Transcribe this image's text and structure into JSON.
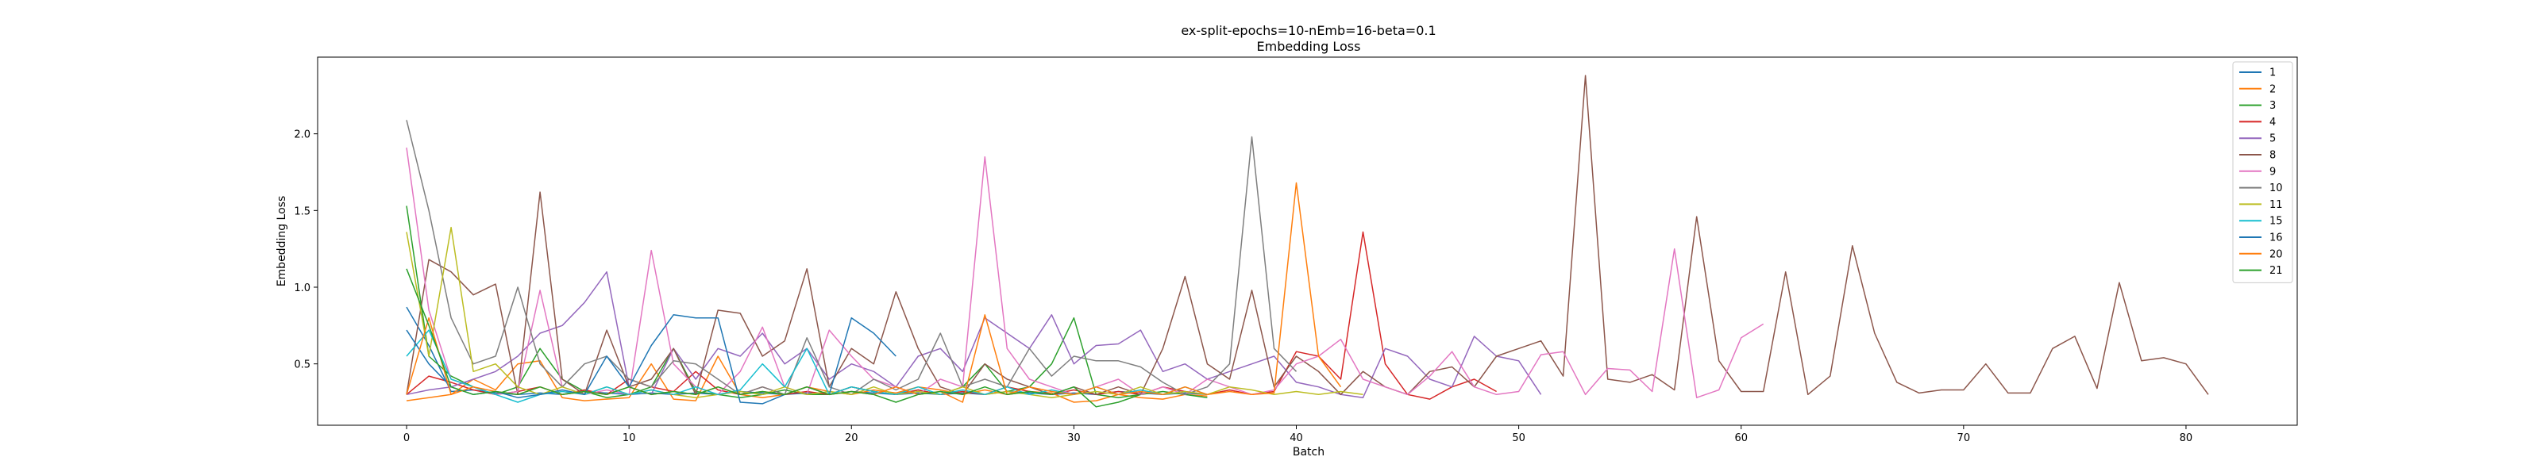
{
  "chart_data": {
    "type": "line",
    "title": "ex-split-epochs=10-nEmb=16-beta=0.1",
    "subtitle": "Embedding Loss",
    "xlabel": "Batch",
    "ylabel": "Embedding Loss",
    "xlim": [
      -4,
      85
    ],
    "ylim": [
      0.1,
      2.5
    ],
    "xticks": [
      0,
      10,
      20,
      30,
      40,
      50,
      60,
      70,
      80
    ],
    "yticks": [
      0.5,
      1.0,
      1.5,
      2.0
    ],
    "ytick_labels": [
      "0.5",
      "1.0",
      "1.5",
      "2.0"
    ],
    "grid": false,
    "legend_position": "top-right",
    "series": [
      {
        "name": "1",
        "color": "#1f77b4",
        "values": [
          0.87,
          0.62,
          0.32,
          0.33,
          0.31,
          0.3,
          0.31,
          0.3,
          0.32,
          0.31,
          0.3,
          0.31,
          0.3,
          0.31,
          0.3,
          0.32,
          0.31,
          0.3,
          0.31,
          0.3,
          0.32,
          0.31,
          0.3,
          0.31,
          0.3,
          0.31,
          0.3,
          0.32,
          0.31,
          0.3,
          0.31,
          0.3,
          0.32,
          0.31,
          0.3,
          0.31,
          0.3
        ]
      },
      {
        "name": "2",
        "color": "#ff7f0e",
        "values": [
          0.26,
          0.28,
          0.3,
          0.4,
          0.33,
          0.5,
          0.52,
          0.28,
          0.26,
          0.27,
          0.28,
          0.5,
          0.27,
          0.26,
          0.55,
          0.3,
          0.28,
          0.3,
          0.35,
          0.32,
          0.3,
          0.33,
          0.31,
          0.35,
          0.33,
          0.3,
          0.33,
          0.3,
          0.32,
          0.31,
          0.25,
          0.26,
          0.3,
          0.28,
          0.27,
          0.3,
          0.29
        ]
      },
      {
        "name": "3",
        "color": "#2ca02c",
        "values": [
          1.53,
          0.55,
          0.42,
          0.35,
          0.3,
          0.35,
          0.6,
          0.4,
          0.32,
          0.28,
          0.3,
          0.35,
          0.6,
          0.32,
          0.3,
          0.28,
          0.3,
          0.33,
          0.3,
          0.3,
          0.35,
          0.32,
          0.3,
          0.33,
          0.3,
          0.35,
          0.5,
          0.32,
          0.35,
          0.5,
          0.8,
          0.3,
          0.28,
          0.3,
          0.32,
          0.3,
          0.28
        ]
      },
      {
        "name": "4",
        "color": "#d62728",
        "values": [
          0.3,
          0.42,
          0.38,
          0.33,
          0.3,
          0.32,
          0.35,
          0.3,
          0.33,
          0.3,
          0.4,
          0.35,
          0.32,
          0.45,
          0.33,
          0.3,
          0.35,
          0.3,
          0.32,
          0.3,
          0.35,
          0.32,
          0.3,
          0.33,
          0.3,
          0.32,
          0.3,
          0.35,
          0.32,
          0.3,
          0.33,
          0.3,
          0.32,
          0.3,
          0.35,
          0.32,
          0.3,
          0.33,
          0.3,
          0.32,
          0.58,
          0.55,
          0.4,
          1.36,
          0.5,
          0.3,
          0.27,
          0.35,
          0.4,
          0.32
        ]
      },
      {
        "name": "5",
        "color": "#9467bd",
        "values": [
          0.3,
          0.33,
          0.35,
          0.4,
          0.45,
          0.55,
          0.7,
          0.75,
          0.9,
          1.1,
          0.35,
          0.3,
          0.6,
          0.4,
          0.6,
          0.55,
          0.7,
          0.5,
          0.6,
          0.4,
          0.5,
          0.45,
          0.35,
          0.55,
          0.6,
          0.45,
          0.8,
          0.7,
          0.6,
          0.82,
          0.5,
          0.62,
          0.63,
          0.72,
          0.45,
          0.5,
          0.4,
          0.45,
          0.5,
          0.55,
          0.38,
          0.35,
          0.3,
          0.28,
          0.6,
          0.55,
          0.4,
          0.35,
          0.68,
          0.55,
          0.52,
          0.3
        ]
      },
      {
        "name": "8",
        "color": "#8c564b",
        "values": [
          0.3,
          1.18,
          1.1,
          0.95,
          1.02,
          0.3,
          1.62,
          0.4,
          0.3,
          0.72,
          0.35,
          0.4,
          0.6,
          0.3,
          0.85,
          0.83,
          0.55,
          0.65,
          1.12,
          0.35,
          0.6,
          0.5,
          0.97,
          0.6,
          0.35,
          0.3,
          0.5,
          0.4,
          0.35,
          0.3,
          0.35,
          0.3,
          0.35,
          0.3,
          0.6,
          1.07,
          0.5,
          0.4,
          0.98,
          0.35,
          0.55,
          0.45,
          0.3,
          0.45,
          0.35,
          0.3,
          0.45,
          0.48,
          0.35,
          0.55,
          0.6,
          0.65,
          0.42,
          2.38,
          0.4,
          0.38,
          0.43,
          0.33,
          1.46,
          0.52,
          0.32,
          0.32,
          1.1,
          0.3,
          0.42,
          1.27,
          0.7,
          0.38,
          0.31,
          0.33,
          0.33,
          0.5,
          0.31,
          0.31,
          0.6,
          0.68,
          0.34,
          1.03,
          0.52,
          0.54,
          0.5,
          0.3
        ]
      },
      {
        "name": "9",
        "color": "#e377c2",
        "values": [
          1.91,
          0.85,
          0.4,
          0.35,
          0.3,
          0.32,
          0.98,
          0.35,
          0.3,
          0.33,
          0.3,
          1.24,
          0.5,
          0.35,
          0.3,
          0.45,
          0.74,
          0.35,
          0.3,
          0.72,
          0.55,
          0.4,
          0.35,
          0.3,
          0.4,
          0.35,
          1.85,
          0.6,
          0.4,
          0.35,
          0.3,
          0.35,
          0.4,
          0.3,
          0.35,
          0.3,
          0.4,
          0.35,
          0.3,
          0.33,
          0.5,
          0.55,
          0.66,
          0.4,
          0.35,
          0.3,
          0.42,
          0.58,
          0.35,
          0.3,
          0.32,
          0.56,
          0.58,
          0.3,
          0.47,
          0.46,
          0.32,
          1.25,
          0.28,
          0.33,
          0.67,
          0.76
        ]
      },
      {
        "name": "10",
        "color": "#7f7f7f",
        "values": [
          2.09,
          1.5,
          0.8,
          0.5,
          0.55,
          1.0,
          0.5,
          0.35,
          0.5,
          0.55,
          0.4,
          0.35,
          0.52,
          0.5,
          0.4,
          0.3,
          0.35,
          0.3,
          0.67,
          0.35,
          0.3,
          0.4,
          0.33,
          0.4,
          0.7,
          0.35,
          0.4,
          0.35,
          0.6,
          0.42,
          0.55,
          0.52,
          0.52,
          0.48,
          0.38,
          0.3,
          0.35,
          0.5,
          1.98,
          0.6,
          0.45
        ]
      },
      {
        "name": "11",
        "color": "#bcbd22",
        "values": [
          1.36,
          0.55,
          1.39,
          0.45,
          0.5,
          0.35,
          0.3,
          0.35,
          0.3,
          0.35,
          0.3,
          0.33,
          0.3,
          0.28,
          0.3,
          0.32,
          0.3,
          0.35,
          0.3,
          0.32,
          0.3,
          0.35,
          0.3,
          0.32,
          0.3,
          0.35,
          0.3,
          0.32,
          0.3,
          0.28,
          0.3,
          0.32,
          0.3,
          0.35,
          0.3,
          0.32,
          0.3,
          0.35,
          0.33,
          0.3,
          0.32,
          0.3,
          0.32,
          0.3
        ]
      },
      {
        "name": "15",
        "color": "#17becf",
        "values": [
          0.55,
          0.72,
          0.4,
          0.35,
          0.3,
          0.25,
          0.3,
          0.32,
          0.3,
          0.35,
          0.3,
          0.33,
          0.3,
          0.35,
          0.3,
          0.33,
          0.5,
          0.35,
          0.6,
          0.3,
          0.35,
          0.32,
          0.3,
          0.35,
          0.3,
          0.33,
          0.3,
          0.35,
          0.3,
          0.33,
          0.3,
          0.35,
          0.3,
          0.33,
          0.3,
          0.35,
          0.3
        ]
      },
      {
        "name": "16",
        "color": "#1f77b4",
        "values": [
          0.72,
          0.5,
          0.35,
          0.3,
          0.32,
          0.28,
          0.3,
          0.33,
          0.3,
          0.55,
          0.35,
          0.62,
          0.82,
          0.8,
          0.8,
          0.25,
          0.24,
          0.3,
          0.35,
          0.3,
          0.8,
          0.7,
          0.55
        ]
      },
      {
        "name": "20",
        "color": "#ff7f0e",
        "values": [
          0.3,
          0.8,
          0.3,
          0.35,
          0.32,
          0.3,
          0.35,
          0.3,
          0.32,
          0.3,
          0.35,
          0.3,
          0.32,
          0.3,
          0.35,
          0.3,
          0.32,
          0.3,
          0.35,
          0.3,
          0.32,
          0.3,
          0.35,
          0.3,
          0.32,
          0.25,
          0.82,
          0.3,
          0.35,
          0.32,
          0.3,
          0.35,
          0.3,
          0.32,
          0.3,
          0.35,
          0.3,
          0.32,
          0.3,
          0.31,
          1.68,
          0.55,
          0.35
        ]
      },
      {
        "name": "21",
        "color": "#2ca02c",
        "values": [
          1.12,
          0.75,
          0.35,
          0.3,
          0.32,
          0.3,
          0.35,
          0.3,
          0.32,
          0.3,
          0.35,
          0.3,
          0.32,
          0.3,
          0.35,
          0.3,
          0.32,
          0.3,
          0.35,
          0.3,
          0.32,
          0.3,
          0.25,
          0.3,
          0.32,
          0.3,
          0.35,
          0.3,
          0.32,
          0.3,
          0.35,
          0.22,
          0.25,
          0.3
        ]
      }
    ]
  }
}
